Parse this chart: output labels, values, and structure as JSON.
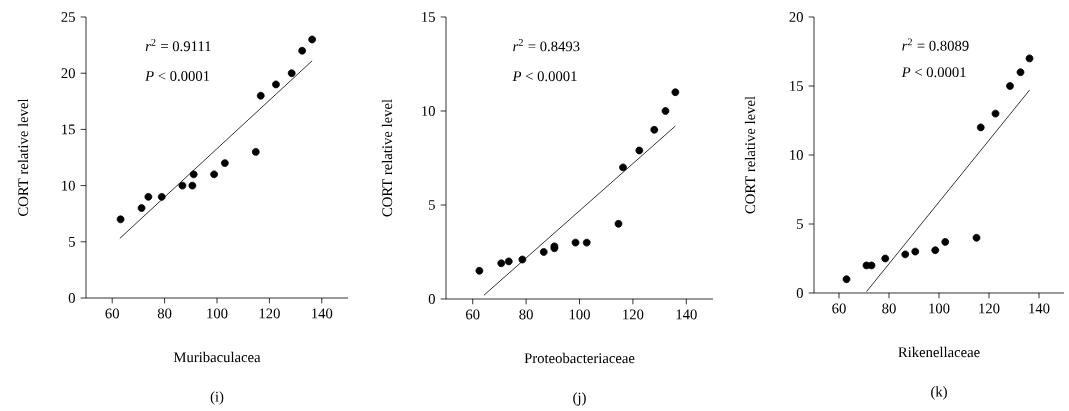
{
  "chart_data": [
    {
      "type": "scatter",
      "xlabel": "Muribaculacea",
      "ylabel": "CORT relative level",
      "xlim": [
        50,
        150
      ],
      "ylim": [
        0,
        25
      ],
      "xticks": [
        60,
        80,
        100,
        120,
        140
      ],
      "yticks": [
        0,
        5,
        10,
        15,
        20,
        25
      ],
      "annotations": [
        "*r*$^{2}$ = 0.9111",
        "*P* < 0.0001",
        "(i)"
      ],
      "series": [
        {
          "marker": "circle",
          "color": "#000000",
          "x": [
            63.2,
            71.2,
            73.8,
            78.9,
            86.8,
            90.6,
            91.1,
            98.9,
            103,
            114.8,
            116.7,
            122.5,
            128.5,
            132.5,
            136.3
          ],
          "values": [
            7,
            8,
            9,
            9,
            10,
            10,
            11,
            11,
            12,
            13,
            18,
            19,
            20,
            22,
            23
          ]
        },
        {
          "type": "line",
          "marker": "none",
          "color": "#000000",
          "x": [
            62.9,
            136.3
          ],
          "values": [
            5.3,
            21.1
          ]
        }
      ]
    },
    {
      "type": "scatter",
      "xlabel": "Proteobacteriaceae",
      "ylabel": "CORT relative level",
      "xlim": [
        50,
        150
      ],
      "ylim": [
        0,
        15
      ],
      "xticks": [
        60,
        80,
        100,
        120,
        140
      ],
      "yticks": [
        0,
        5,
        10,
        15
      ],
      "annotations": [
        "*r*$^{2}$ = 0.8493",
        "*P* < 0.0001",
        "(j)"
      ],
      "series": [
        {
          "marker": "circle",
          "color": "#000000",
          "x": [
            62.5,
            70.7,
            73.5,
            78.6,
            86.6,
            90.6,
            90.6,
            98.5,
            102.7,
            114.6,
            116.3,
            122.4,
            128,
            132.2,
            135.9
          ],
          "values": [
            1.5,
            1.9,
            2.0,
            2.1,
            2.5,
            2.7,
            2.8,
            3.0,
            3.0,
            4.0,
            7.0,
            7.9,
            9.0,
            10.0,
            11.0
          ]
        },
        {
          "type": "line",
          "marker": "none",
          "color": "#000000",
          "x": [
            64.2,
            135.9
          ],
          "values": [
            0.2,
            9.2
          ]
        }
      ]
    },
    {
      "type": "scatter",
      "xlabel": "Rikenellaceae",
      "ylabel": "CORT relative level",
      "xlim": [
        50,
        150
      ],
      "ylim": [
        0,
        20
      ],
      "xticks": [
        60,
        80,
        100,
        120,
        140
      ],
      "yticks": [
        0,
        5,
        10,
        15,
        20
      ],
      "annotations": [
        "*r*$^{2}$ = 0.8089",
        "*P* < 0.0001",
        "(k)"
      ],
      "series": [
        {
          "marker": "circle",
          "color": "#000000",
          "x": [
            63,
            71,
            73,
            78.5,
            86.5,
            90.5,
            98.5,
            102.5,
            115,
            116.7,
            122.6,
            128.4,
            132.6,
            136.2
          ],
          "values": [
            1,
            2,
            2,
            2.5,
            2.8,
            3,
            3.1,
            3.7,
            4,
            12,
            13,
            15,
            16,
            17
          ]
        },
        {
          "type": "line",
          "marker": "none",
          "color": "#000000",
          "x": [
            71,
            136.2
          ],
          "values": [
            0.1,
            14.7
          ]
        }
      ]
    }
  ]
}
